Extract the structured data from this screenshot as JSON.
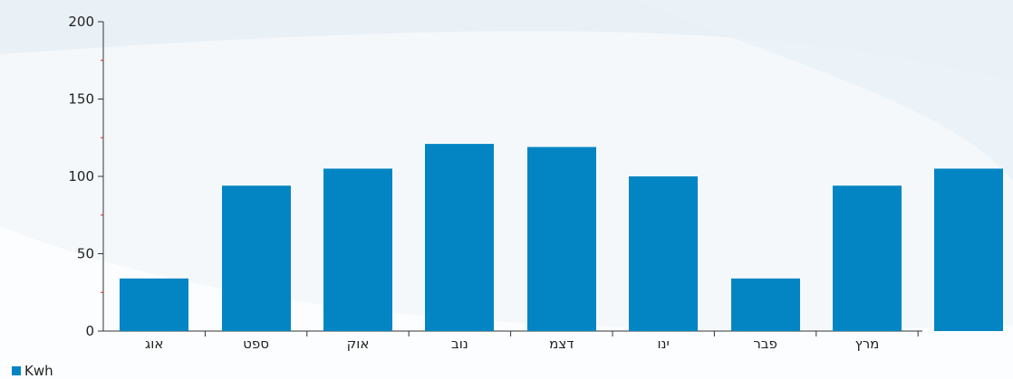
{
  "chart_data": {
    "type": "bar",
    "categories": [
      "אוג",
      "ספט",
      "אוק",
      "נוב",
      "דצמ",
      "ינו",
      "פבר",
      "מרץ",
      ""
    ],
    "series": [
      {
        "name": "Kwh",
        "values": [
          34,
          94,
          105,
          121,
          119,
          100,
          34,
          94,
          105
        ]
      }
    ],
    "ylim": [
      0,
      200
    ],
    "yticks": [
      0,
      50,
      100,
      150,
      200
    ],
    "grid": false,
    "legend": "bottom-left",
    "colors": {
      "bar": "#0385c3",
      "axis": "#333333",
      "minor_tick": "#e02020"
    }
  }
}
